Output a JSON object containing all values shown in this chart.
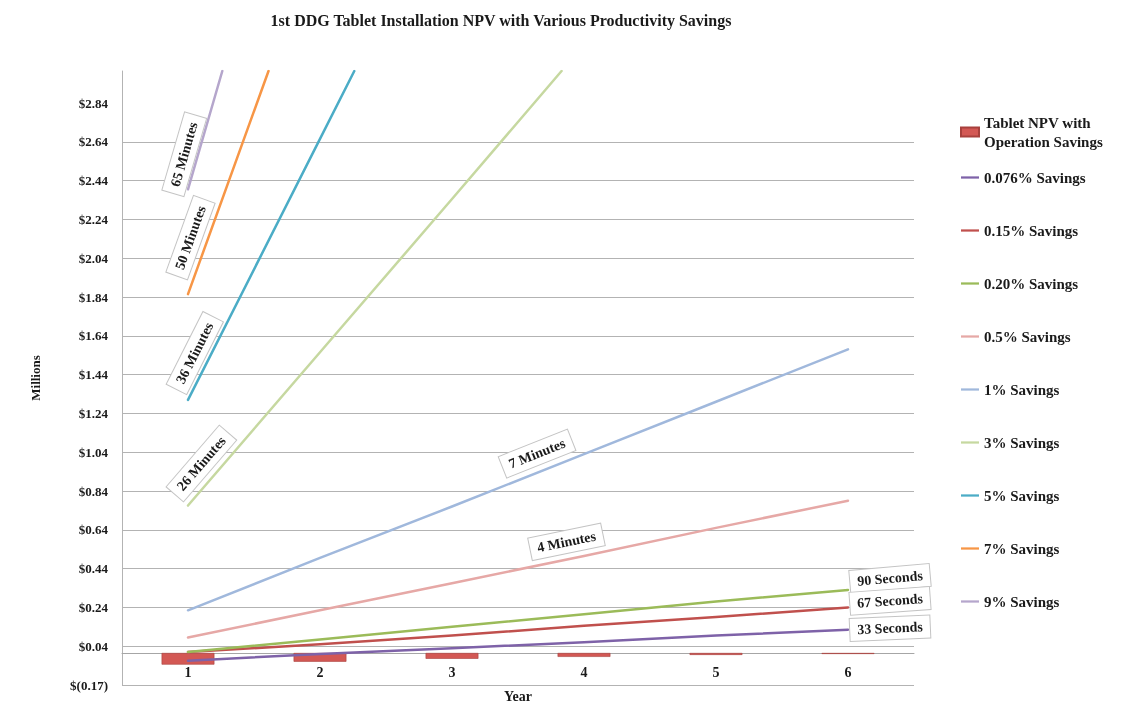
{
  "chart_data": {
    "type": "line",
    "title": "1st DDG Tablet Installation NPV with Various Productivity Savings",
    "xlabel": "Year",
    "ylabel": "Millions",
    "x": [
      1,
      2,
      3,
      4,
      5,
      6
    ],
    "xlim": [
      0.5,
      6.5
    ],
    "xticks": [
      1,
      2,
      3,
      4,
      5,
      6
    ],
    "ylim": [
      -0.165,
      3.0
    ],
    "yticks": [
      {
        "value": -0.165,
        "label": "$(0.17)"
      },
      {
        "value": 0.035,
        "label": "$0.04"
      },
      {
        "value": 0.235,
        "label": "$0.24"
      },
      {
        "value": 0.435,
        "label": "$0.44"
      },
      {
        "value": 0.635,
        "label": "$0.64"
      },
      {
        "value": 0.835,
        "label": "$0.84"
      },
      {
        "value": 1.035,
        "label": "$1.04"
      },
      {
        "value": 1.235,
        "label": "$1.24"
      },
      {
        "value": 1.435,
        "label": "$1.44"
      },
      {
        "value": 1.635,
        "label": "$1.64"
      },
      {
        "value": 1.835,
        "label": "$1.84"
      },
      {
        "value": 2.035,
        "label": "$2.04"
      },
      {
        "value": 2.235,
        "label": "$2.24"
      },
      {
        "value": 2.435,
        "label": "$2.44"
      },
      {
        "value": 2.635,
        "label": "$2.64"
      },
      {
        "value": 2.835,
        "label": "$2.84"
      }
    ],
    "grid": "y",
    "legend": "right",
    "marker": "none",
    "line_style": "solid",
    "series": [
      {
        "name": "Tablet NPV with Operation Savings",
        "type": "bar",
        "color": "#d35854",
        "values": [
          -0.06,
          -0.045,
          -0.03,
          -0.02,
          -0.01,
          -0.005
        ]
      },
      {
        "name": "0.076% Savings",
        "color": "#7e62a8",
        "values": [
          -0.04,
          -0.005,
          0.025,
          0.055,
          0.09,
          0.12
        ]
      },
      {
        "name": "0.15% Savings",
        "color": "#c0504d",
        "values": [
          0.005,
          0.045,
          0.09,
          0.14,
          0.185,
          0.235
        ]
      },
      {
        "name": "0.20% Savings",
        "color": "#9bbb59",
        "values": [
          0.005,
          0.07,
          0.135,
          0.2,
          0.265,
          0.325
        ]
      },
      {
        "name": "0.5% Savings",
        "color": "#e6a8a6",
        "values": [
          0.08,
          0.22,
          0.36,
          0.5,
          0.645,
          0.785
        ]
      },
      {
        "name": "1% Savings",
        "color": "#a0b8dc",
        "values": [
          0.22,
          0.49,
          0.755,
          1.025,
          1.295,
          1.565
        ]
      },
      {
        "name": "3% Savings",
        "color": "#c6d8a0",
        "x": [
          1,
          2,
          3,
          3.83
        ],
        "values": [
          0.76,
          1.55,
          2.34,
          3.0
        ]
      },
      {
        "name": "5% Savings",
        "color": "#4bacc6",
        "x": [
          1,
          2,
          2.26
        ],
        "values": [
          1.305,
          2.65,
          3.0
        ]
      },
      {
        "name": "7% Savings",
        "color": "#f79646",
        "x": [
          1,
          1.61
        ],
        "values": [
          1.85,
          3.0
        ]
      },
      {
        "name": "9% Savings",
        "color": "#b5a6cc",
        "x": [
          1,
          1.26
        ],
        "values": [
          2.39,
          3.0
        ]
      }
    ],
    "annotations": [
      {
        "text": "65 Minutes",
        "x": 1.07,
        "y": 2.55
      },
      {
        "text": "50 Minutes",
        "x": 1.14,
        "y": 2.11
      },
      {
        "text": "36 Minutes",
        "x": 1.15,
        "y": 1.51
      },
      {
        "text": "26 Minutes",
        "x": 1.2,
        "y": 0.92
      },
      {
        "text": "7 Minutes",
        "x": 3.69,
        "y": 0.94
      },
      {
        "text": "4 Minutes",
        "x": 3.89,
        "y": 0.485
      },
      {
        "text": "90 Seconds",
        "x": 6,
        "y": 0.325
      },
      {
        "text": "67 Seconds",
        "x": 6,
        "y": 0.235
      },
      {
        "text": "33 Seconds",
        "x": 6,
        "y": 0.12
      }
    ]
  }
}
